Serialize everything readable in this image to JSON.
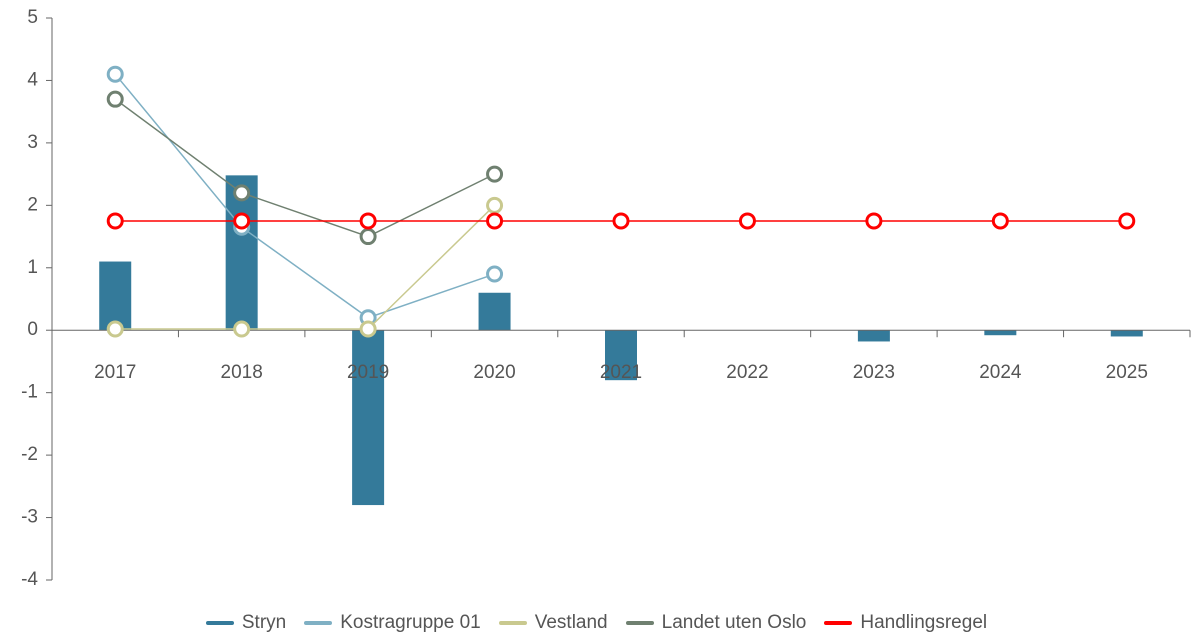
{
  "chart_data": {
    "type": "bar-line",
    "categories": [
      "2017",
      "2018",
      "2019",
      "2020",
      "2021",
      "2022",
      "2023",
      "2024",
      "2025"
    ],
    "series": [
      {
        "name": "Stryn",
        "type": "bar",
        "color": "#347a9a",
        "values": [
          1.1,
          2.48,
          -2.8,
          0.6,
          -0.8,
          null,
          -0.18,
          -0.08,
          -0.1
        ]
      },
      {
        "name": "Kostragruppe 01",
        "type": "line",
        "color": "#7fb0c4",
        "values": [
          4.1,
          1.65,
          0.2,
          0.9,
          null,
          null,
          null,
          null,
          null
        ]
      },
      {
        "name": "Vestland",
        "type": "line",
        "color": "#c9c98f",
        "values": [
          0.02,
          0.02,
          0.02,
          2.0,
          null,
          null,
          null,
          null,
          null
        ]
      },
      {
        "name": "Landet uten Oslo",
        "type": "line",
        "color": "#6f8070",
        "values": [
          3.7,
          2.2,
          1.5,
          2.5,
          null,
          null,
          null,
          null,
          null
        ]
      },
      {
        "name": "Handlingsregel",
        "type": "line",
        "color": "#ff0000",
        "values": [
          1.75,
          1.75,
          1.75,
          1.75,
          1.75,
          1.75,
          1.75,
          1.75,
          1.75
        ]
      }
    ],
    "ylim": [
      -4,
      5
    ],
    "yticks": [
      -4,
      -3,
      -2,
      -1,
      0,
      1,
      2,
      3,
      4,
      5
    ]
  }
}
